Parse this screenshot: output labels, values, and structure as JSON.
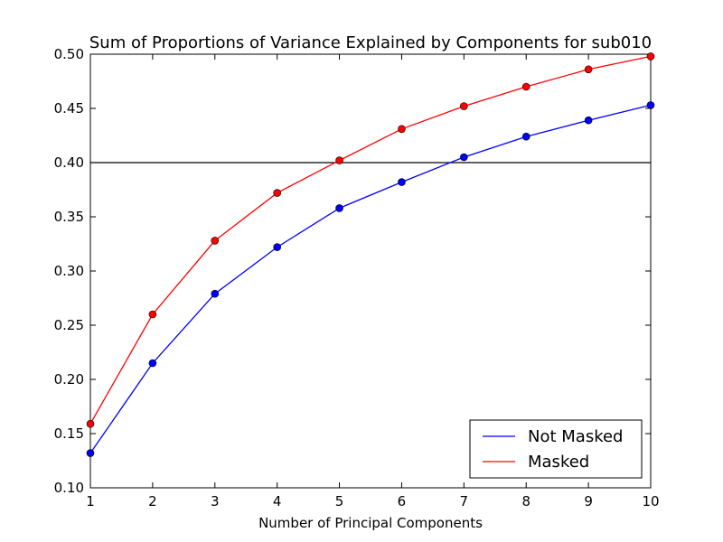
{
  "chart_data": {
    "type": "line",
    "title": "Sum of Proportions of Variance Explained by Components for sub010",
    "xlabel": "Number of Principal Components",
    "ylabel": "",
    "x": [
      1,
      2,
      3,
      4,
      5,
      6,
      7,
      8,
      9,
      10
    ],
    "xlim": [
      1,
      10
    ],
    "ylim": [
      0.1,
      0.5
    ],
    "xticks": [
      "1",
      "2",
      "3",
      "4",
      "5",
      "6",
      "7",
      "8",
      "9",
      "10"
    ],
    "yticks": [
      "0.10",
      "0.15",
      "0.20",
      "0.25",
      "0.30",
      "0.35",
      "0.40",
      "0.45",
      "0.50"
    ],
    "grid": false,
    "legend_position": "bottom-right",
    "reference_line": 0.4,
    "reference_color": "#000000",
    "series": [
      {
        "name": "Not Masked",
        "color": "#0000ff",
        "values": [
          0.132,
          0.215,
          0.279,
          0.322,
          0.358,
          0.382,
          0.405,
          0.424,
          0.439,
          0.453
        ]
      },
      {
        "name": "Masked",
        "color": "#ff0000",
        "values": [
          0.159,
          0.26,
          0.328,
          0.372,
          0.402,
          0.431,
          0.452,
          0.47,
          0.486,
          0.498
        ]
      }
    ]
  }
}
